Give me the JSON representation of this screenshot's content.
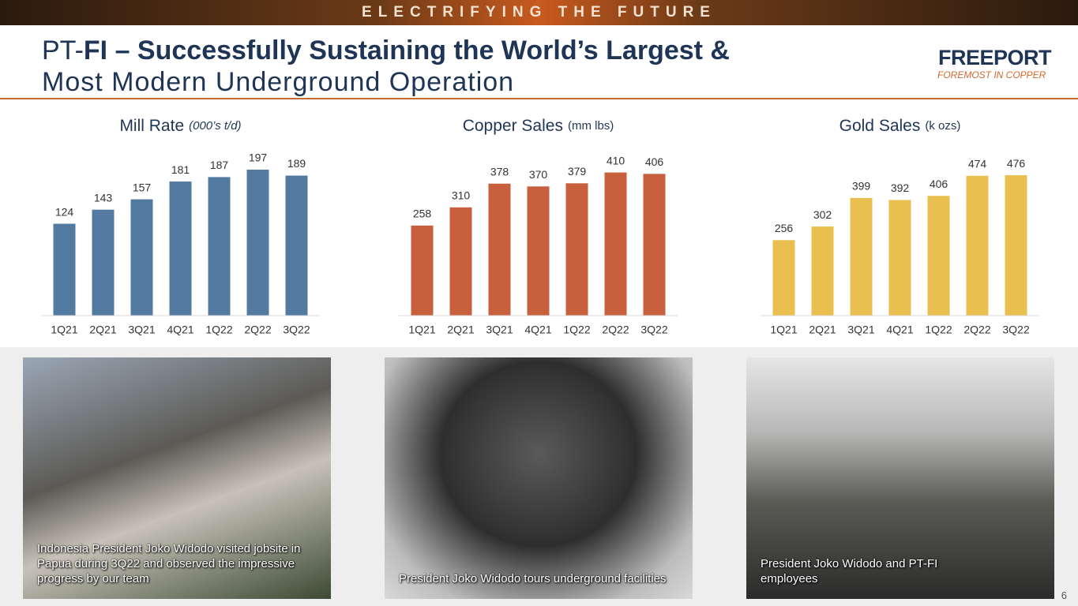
{
  "banner": "ELECTRIFYING THE FUTURE",
  "header": {
    "title_prefix": "PT-",
    "title_bold": "FI – Successfully Sustaining the World’s Largest &",
    "title_line2": "Most Modern Underground Operation",
    "logo": "FREEPORT",
    "tagline": "FOREMOST IN COPPER"
  },
  "chart_data": [
    {
      "type": "bar",
      "title": "Mill Rate",
      "unit": "(000’s t/d)",
      "color": "#537aa0",
      "categories": [
        "1Q21",
        "2Q21",
        "3Q21",
        "4Q21",
        "1Q22",
        "2Q22",
        "3Q22"
      ],
      "values": [
        124,
        143,
        157,
        181,
        187,
        197,
        189
      ],
      "ylim": [
        0,
        213
      ]
    },
    {
      "type": "bar",
      "title": "Copper Sales",
      "unit": "(mm lbs)",
      "color": "#c8603e",
      "categories": [
        "1Q21",
        "2Q21",
        "3Q21",
        "4Q21",
        "1Q22",
        "2Q22",
        "3Q22"
      ],
      "values": [
        258,
        310,
        378,
        370,
        379,
        410,
        406
      ],
      "ylim": [
        0,
        452
      ]
    },
    {
      "type": "bar",
      "title": "Gold Sales",
      "unit": "(k ozs)",
      "color": "#e9c04f",
      "categories": [
        "1Q21",
        "2Q21",
        "3Q21",
        "4Q21",
        "1Q22",
        "2Q22",
        "3Q22"
      ],
      "values": [
        256,
        302,
        399,
        392,
        406,
        474,
        476
      ],
      "ylim": [
        0,
        535
      ]
    }
  ],
  "photos": [
    {
      "caption": "Indonesia President Joko Widodo visited jobsite in Papua during 3Q22 and observed the impressive progress by our team"
    },
    {
      "caption": "President Joko Widodo tours underground facilities"
    },
    {
      "caption": "President Joko Widodo and PT-FI employees"
    }
  ],
  "page_number": "6"
}
